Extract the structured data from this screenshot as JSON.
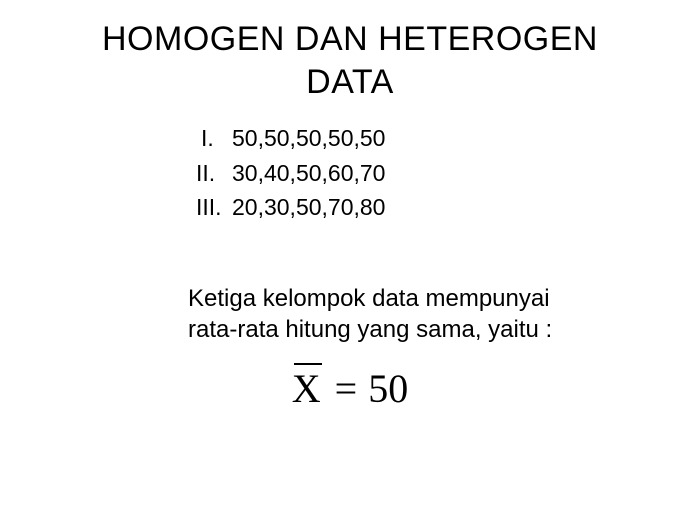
{
  "title": {
    "line1": "HOMOGEN DAN HETEROGEN",
    "line2": "DATA"
  },
  "list": {
    "items": [
      {
        "marker": "I.",
        "text": "50,50,50,50,50"
      },
      {
        "marker": "II.",
        "text": "30,40,50,60,70"
      },
      {
        "marker": "III.",
        "text": "20,30,50,70,80"
      }
    ]
  },
  "description": {
    "line1": "Ketiga kelompok data mempunyai",
    "line2": "rata-rata hitung yang sama, yaitu :"
  },
  "formula": {
    "variable": "X",
    "equals": "=",
    "value": "50"
  },
  "colors": {
    "background": "#ffffff",
    "text": "#000000"
  },
  "typography": {
    "title_fontsize": 34,
    "list_fontsize": 23,
    "description_fontsize": 24,
    "formula_fontsize": 40,
    "title_font": "Arial",
    "formula_font": "Times New Roman"
  }
}
